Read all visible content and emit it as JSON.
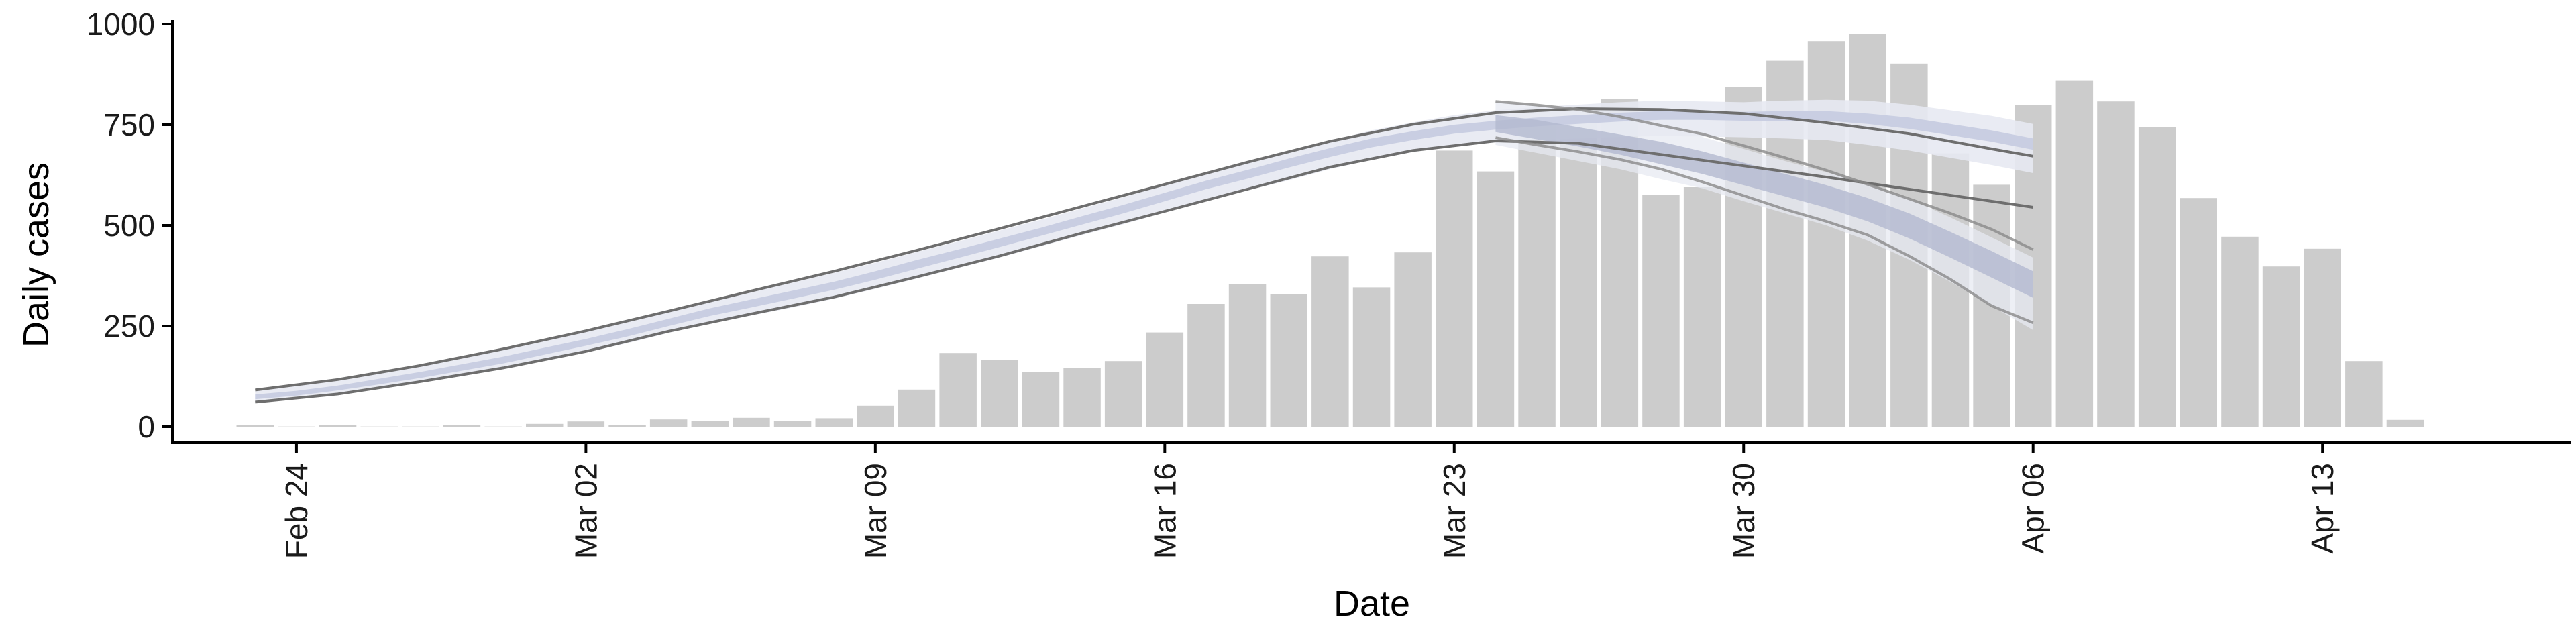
{
  "chart_data": {
    "type": "bar",
    "title": "",
    "xlabel": "Date",
    "ylabel": "Daily cases",
    "x_type": "date",
    "xlim": [
      "2020-02-21",
      "2020-04-19"
    ],
    "ylim": [
      -40,
      1010
    ],
    "y_ticks": [
      0,
      250,
      500,
      750,
      1000
    ],
    "x_ticks": [
      {
        "date": "2020-02-24",
        "label": "Feb 24"
      },
      {
        "date": "2020-03-02",
        "label": "Mar 02"
      },
      {
        "date": "2020-03-09",
        "label": "Mar 09"
      },
      {
        "date": "2020-03-16",
        "label": "Mar 16"
      },
      {
        "date": "2020-03-23",
        "label": "Mar 23"
      },
      {
        "date": "2020-03-30",
        "label": "Mar 30"
      },
      {
        "date": "2020-04-06",
        "label": "Apr 06"
      },
      {
        "date": "2020-04-13",
        "label": "Apr 13"
      }
    ],
    "grid": false,
    "legend": "none",
    "bars": {
      "color": "#cccccc",
      "x": [
        "2020-02-23",
        "2020-02-24",
        "2020-02-25",
        "2020-02-26",
        "2020-02-27",
        "2020-02-28",
        "2020-02-29",
        "2020-03-01",
        "2020-03-02",
        "2020-03-03",
        "2020-03-04",
        "2020-03-05",
        "2020-03-06",
        "2020-03-07",
        "2020-03-08",
        "2020-03-09",
        "2020-03-10",
        "2020-03-11",
        "2020-03-12",
        "2020-03-13",
        "2020-03-14",
        "2020-03-15",
        "2020-03-16",
        "2020-03-17",
        "2020-03-18",
        "2020-03-19",
        "2020-03-20",
        "2020-03-21",
        "2020-03-22",
        "2020-03-23",
        "2020-03-24",
        "2020-03-25",
        "2020-03-26",
        "2020-03-27",
        "2020-03-28",
        "2020-03-29",
        "2020-03-30",
        "2020-03-31",
        "2020-04-01",
        "2020-04-02",
        "2020-04-03",
        "2020-04-04",
        "2020-04-05",
        "2020-04-06",
        "2020-04-07",
        "2020-04-08",
        "2020-04-09",
        "2020-04-10",
        "2020-04-11",
        "2020-04-12",
        "2020-04-13",
        "2020-04-14",
        "2020-04-15"
      ],
      "values": [
        1,
        0,
        1,
        0,
        0,
        3,
        0,
        7,
        13,
        4,
        18,
        14,
        22,
        15,
        21,
        52,
        92,
        183,
        165,
        135,
        146,
        163,
        234,
        305,
        354,
        329,
        423,
        346,
        433,
        686,
        634,
        749,
        760,
        815,
        575,
        595,
        845,
        909,
        958,
        976,
        902,
        679,
        601,
        800,
        859,
        808,
        745,
        568,
        472,
        398,
        442,
        163,
        17
      ]
    },
    "bands": {
      "x": [
        "2020-02-23",
        "2020-02-24",
        "2020-02-25",
        "2020-02-26",
        "2020-02-27",
        "2020-02-28",
        "2020-02-29",
        "2020-03-01",
        "2020-03-02",
        "2020-03-03",
        "2020-03-04",
        "2020-03-05",
        "2020-03-06",
        "2020-03-07",
        "2020-03-08",
        "2020-03-09",
        "2020-03-10",
        "2020-03-11",
        "2020-03-12",
        "2020-03-13",
        "2020-03-14",
        "2020-03-15",
        "2020-03-16",
        "2020-03-17",
        "2020-03-18",
        "2020-03-19",
        "2020-03-20",
        "2020-03-21",
        "2020-03-22",
        "2020-03-23",
        "2020-03-24",
        "2020-03-25",
        "2020-03-26",
        "2020-03-27",
        "2020-03-28",
        "2020-03-29",
        "2020-03-30",
        "2020-03-31",
        "2020-04-01",
        "2020-04-02",
        "2020-04-03",
        "2020-04-04",
        "2020-04-05",
        "2020-04-06"
      ],
      "outer_lower": [
        60,
        68,
        80,
        94,
        110,
        126,
        143,
        164,
        185,
        207,
        233,
        256,
        276,
        296,
        318,
        342,
        368,
        394,
        420,
        448,
        476,
        503,
        532,
        561,
        587,
        612,
        640,
        663,
        682,
        698,
        706,
        712,
        716,
        720,
        722,
        721,
        719,
        716,
        712,
        700,
        686,
        668,
        650,
        630
      ],
      "outer_upper": [
        90,
        101,
        115,
        133,
        150,
        170,
        190,
        212,
        235,
        260,
        285,
        311,
        334,
        358,
        382,
        407,
        434,
        460,
        487,
        514,
        542,
        570,
        600,
        630,
        656,
        684,
        710,
        736,
        756,
        774,
        786,
        794,
        800,
        806,
        810,
        808,
        806,
        810,
        812,
        810,
        800,
        786,
        772,
        752
      ],
      "inner_lower": [
        68,
        77,
        90,
        105,
        121,
        139,
        157,
        179,
        201,
        224,
        250,
        275,
        296,
        318,
        340,
        365,
        392,
        419,
        446,
        474,
        502,
        530,
        560,
        590,
        616,
        644,
        670,
        694,
        712,
        728,
        738,
        746,
        752,
        758,
        762,
        762,
        760,
        760,
        760,
        752,
        740,
        724,
        708,
        688
      ],
      "inner_upper": [
        80,
        89,
        102,
        119,
        136,
        155,
        174,
        196,
        218,
        242,
        268,
        294,
        316,
        338,
        360,
        386,
        414,
        440,
        467,
        494,
        523,
        551,
        581,
        611,
        638,
        666,
        692,
        716,
        734,
        750,
        760,
        768,
        774,
        780,
        784,
        784,
        782,
        784,
        784,
        778,
        768,
        752,
        736,
        716
      ],
      "line_x": [
        "2020-02-23",
        "2020-02-25",
        "2020-02-27",
        "2020-02-29",
        "2020-03-02",
        "2020-03-04",
        "2020-03-06",
        "2020-03-08",
        "2020-03-10",
        "2020-03-12",
        "2020-03-14",
        "2020-03-16",
        "2020-03-18",
        "2020-03-20",
        "2020-03-22",
        "2020-03-24",
        "2020-03-26",
        "2020-03-28",
        "2020-03-30",
        "2020-04-01",
        "2020-04-03",
        "2020-04-05",
        "2020-04-06"
      ],
      "line_lower": [
        61,
        81,
        112,
        146,
        187,
        237,
        280,
        322,
        372,
        424,
        481,
        535,
        590,
        645,
        686,
        710,
        704,
        676,
        648,
        620,
        590,
        560,
        545
      ],
      "line_upper": [
        91,
        117,
        152,
        193,
        238,
        287,
        337,
        386,
        438,
        492,
        547,
        602,
        657,
        709,
        751,
        780,
        790,
        788,
        778,
        755,
        728,
        690,
        672
      ],
      "tail_x": [
        "2020-03-24",
        "2020-03-25",
        "2020-03-26",
        "2020-03-27",
        "2020-03-28",
        "2020-03-29",
        "2020-03-30",
        "2020-03-31",
        "2020-04-01",
        "2020-04-02",
        "2020-04-03",
        "2020-04-04",
        "2020-04-05",
        "2020-04-06"
      ],
      "tail_outer_lower": [
        700,
        680,
        660,
        640,
        615,
        592,
        560,
        530,
        500,
        462,
        415,
        360,
        300,
        240
      ],
      "tail_outer_upper": [
        808,
        800,
        784,
        766,
        748,
        720,
        690,
        660,
        632,
        602,
        566,
        520,
        470,
        420
      ],
      "tail_inner_lower": [
        732,
        714,
        696,
        676,
        652,
        628,
        600,
        572,
        544,
        510,
        468,
        420,
        370,
        320
      ],
      "tail_inner_upper": [
        774,
        762,
        744,
        726,
        708,
        684,
        656,
        628,
        600,
        568,
        530,
        484,
        436,
        386
      ],
      "tail_line_lower": [
        718,
        700,
        683,
        664,
        640,
        608,
        574,
        540,
        510,
        476,
        424,
        366,
        300,
        258
      ],
      "tail_line_upper": [
        808,
        799,
        788,
        770,
        748,
        727,
        698,
        668,
        637,
        602,
        566,
        530,
        490,
        440
      ],
      "outer_color": "#e7e9f2",
      "inner_color": "#c5cbe0",
      "line_color": "#6e6e6e"
    }
  }
}
